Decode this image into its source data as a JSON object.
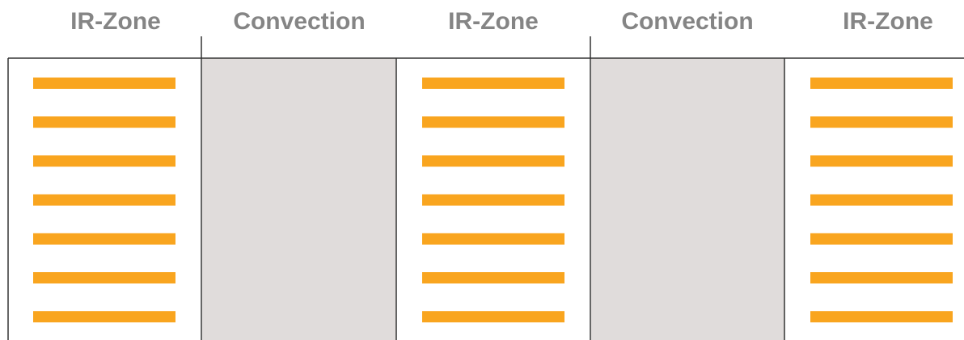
{
  "zones": [
    {
      "label": "IR-Zone"
    },
    {
      "label": "Convection"
    },
    {
      "label": "IR-Zone"
    },
    {
      "label": "Convection"
    },
    {
      "label": "IR-Zone"
    }
  ]
}
